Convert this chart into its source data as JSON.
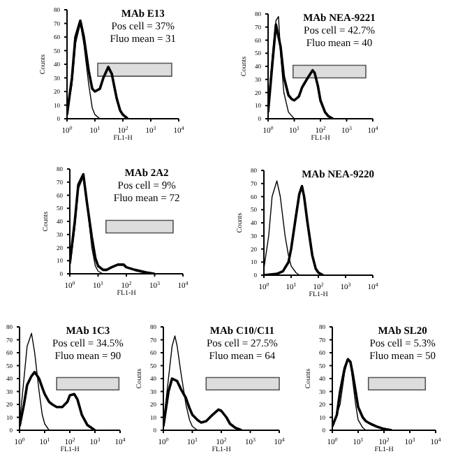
{
  "chart_data": [
    {
      "type": "line",
      "title": "MAb E13",
      "annotations": [
        "Pos cell = 37%",
        "Fluo mean = 31"
      ],
      "xlabel": "FL1-H",
      "ylabel": "Counts",
      "log": "x",
      "xlim": [
        1,
        10000
      ],
      "xticks": [
        {
          "value": 1,
          "label": "10$^{0}$"
        },
        {
          "value": 10,
          "label": "10$^{1}$"
        },
        {
          "value": 100,
          "label": "10$^{2}$"
        },
        {
          "value": 1000,
          "label": "10$^{3}$"
        },
        {
          "value": 10000,
          "label": "10$^{4}$"
        }
      ],
      "ylim": [
        0,
        80
      ],
      "yticks": [
        0,
        10,
        20,
        30,
        40,
        50,
        60,
        70,
        80
      ],
      "bands": [
        {
          "axis": "x",
          "from": 12.6,
          "to": 5600
        }
      ],
      "series": [
        {
          "color": "#000000",
          "x": [
            1,
            1.5,
            2,
            3,
            4,
            6,
            8,
            10,
            15
          ],
          "values": [
            5,
            25,
            55,
            70,
            55,
            25,
            8,
            3,
            0
          ]
        },
        {
          "color": "#000000",
          "x": [
            1,
            1.5,
            2,
            3,
            4,
            6,
            8,
            10,
            15,
            20,
            30,
            40,
            60,
            80,
            100,
            150
          ],
          "values": [
            3,
            30,
            60,
            72,
            60,
            35,
            22,
            20,
            22,
            30,
            38,
            33,
            15,
            6,
            3,
            0
          ]
        }
      ]
    },
    {
      "type": "line",
      "title": "MAb NEA-9221",
      "annotations": [
        "Pos cell = 42.7%",
        "Fluo mean = 40"
      ],
      "xlabel": "FL1-H",
      "ylabel": "Counts",
      "log": "x",
      "xlim": [
        1,
        10000
      ],
      "xticks": [
        {
          "value": 1,
          "label": "10$^{0}$"
        },
        {
          "value": 10,
          "label": "10$^{1}$"
        },
        {
          "value": 100,
          "label": "10$^{2}$"
        },
        {
          "value": 1000,
          "label": "10$^{3}$"
        },
        {
          "value": 10000,
          "label": "10$^{4}$"
        }
      ],
      "ylim": [
        0,
        80
      ],
      "yticks": [
        0,
        10,
        20,
        30,
        40,
        50,
        60,
        70,
        80
      ],
      "bands": [
        {
          "axis": "x",
          "from": 9,
          "to": 5400
        }
      ],
      "series": [
        {
          "color": "#000000",
          "x": [
            1,
            1.5,
            2,
            2.5,
            3,
            4,
            6,
            10
          ],
          "values": [
            10,
            50,
            75,
            78,
            50,
            20,
            5,
            0
          ]
        },
        {
          "color": "#000000",
          "x": [
            1,
            1.5,
            2,
            3,
            4,
            6,
            8,
            10,
            15,
            20,
            30,
            50,
            60,
            80,
            100,
            150,
            200,
            300
          ],
          "values": [
            5,
            45,
            72,
            55,
            32,
            18,
            15,
            14,
            17,
            24,
            30,
            37,
            35,
            25,
            14,
            5,
            2,
            0
          ]
        }
      ]
    },
    {
      "type": "line",
      "title": "MAb 2A2",
      "annotations": [
        "Pos cell = 9%",
        "Fluo mean = 72"
      ],
      "xlabel": "FL1-H",
      "ylabel": "Counts",
      "log": "x",
      "xlim": [
        1,
        10000
      ],
      "xticks": [
        {
          "value": 1,
          "label": "10$^{0}$"
        },
        {
          "value": 10,
          "label": "10$^{1}$"
        },
        {
          "value": 100,
          "label": "10$^{2}$"
        },
        {
          "value": 1000,
          "label": "10$^{3}$"
        },
        {
          "value": 10000,
          "label": "10$^{4}$"
        }
      ],
      "ylim": [
        0,
        80
      ],
      "yticks": [
        0,
        10,
        20,
        30,
        40,
        50,
        60,
        70,
        80
      ],
      "bands": [
        {
          "axis": "x",
          "from": 19,
          "to": 4500
        }
      ],
      "series": [
        {
          "color": "#000000",
          "x": [
            1,
            1.5,
            2,
            3,
            4,
            6,
            8,
            10,
            15
          ],
          "values": [
            5,
            35,
            65,
            74,
            55,
            20,
            6,
            2,
            0
          ]
        },
        {
          "color": "#000000",
          "x": [
            1,
            1.5,
            2,
            3,
            4,
            5,
            6,
            8,
            10,
            15,
            20,
            30,
            50,
            80,
            100,
            200,
            500,
            1000
          ],
          "values": [
            8,
            40,
            68,
            76,
            55,
            40,
            28,
            12,
            6,
            3,
            3,
            5,
            7,
            7,
            5,
            3,
            1,
            0
          ]
        }
      ]
    },
    {
      "type": "line",
      "title": "MAb NEA-9220",
      "xlabel": "FL1-H",
      "ylabel": "Counts",
      "log": "x",
      "xlim": [
        1,
        10000
      ],
      "xticks": [
        {
          "value": 1,
          "label": "10$^{0}$"
        },
        {
          "value": 10,
          "label": "10$^{1}$"
        },
        {
          "value": 100,
          "label": "10$^{2}$"
        },
        {
          "value": 1000,
          "label": "10$^{3}$"
        },
        {
          "value": 10000,
          "label": "10$^{4}$"
        }
      ],
      "ylim": [
        0,
        80
      ],
      "yticks": [
        0,
        10,
        20,
        30,
        40,
        50,
        60,
        70,
        80
      ],
      "series": [
        {
          "color": "#000000",
          "x": [
            1,
            1.5,
            2,
            3,
            4,
            6,
            8,
            10,
            15,
            20
          ],
          "values": [
            5,
            30,
            60,
            72,
            60,
            30,
            15,
            7,
            2,
            0
          ]
        },
        {
          "color": "#000000",
          "x": [
            1,
            3,
            5,
            8,
            10,
            15,
            20,
            25,
            30,
            40,
            60,
            80,
            100,
            150
          ],
          "values": [
            0,
            1,
            3,
            10,
            20,
            45,
            62,
            68,
            60,
            40,
            15,
            5,
            2,
            0
          ]
        }
      ]
    },
    {
      "type": "line",
      "title": "MAb 1C3",
      "annotations": [
        "Pos cell = 34.5%",
        "Fluo mean = 90"
      ],
      "xlabel": "FL1-H",
      "log": "x",
      "xlim": [
        1,
        10000
      ],
      "xticks": [
        {
          "value": 1,
          "label": "10$^{0}$"
        },
        {
          "value": 10,
          "label": "10$^{1}$"
        },
        {
          "value": 100,
          "label": "10$^{2}$"
        },
        {
          "value": 1000,
          "label": "10$^{3}$"
        },
        {
          "value": 10000,
          "label": "10$^{4}$"
        }
      ],
      "ylim": [
        0,
        80
      ],
      "yticks": [
        0,
        10,
        20,
        30,
        40,
        50,
        60,
        70,
        80
      ],
      "bands": [
        {
          "axis": "x",
          "from": 30,
          "to": 9000
        }
      ],
      "series": [
        {
          "color": "#000000",
          "x": [
            1,
            1.5,
            2,
            3,
            4,
            6,
            8,
            10,
            15
          ],
          "values": [
            5,
            40,
            65,
            75,
            60,
            30,
            12,
            5,
            0
          ]
        },
        {
          "color": "#000000",
          "x": [
            1,
            1.5,
            2,
            3,
            4,
            6,
            8,
            10,
            15,
            20,
            30,
            50,
            80,
            100,
            150,
            200,
            300,
            500,
            1000
          ],
          "values": [
            3,
            20,
            35,
            42,
            45,
            40,
            33,
            28,
            22,
            20,
            18,
            18,
            22,
            27,
            28,
            24,
            12,
            4,
            0
          ]
        }
      ]
    },
    {
      "type": "line",
      "title": "MAb C10/C11",
      "annotations": [
        "Pos cell = 27.5%",
        "Fluo mean = 64"
      ],
      "xlabel": "FL1-H",
      "ylabel": "Counts",
      "log": "x",
      "xlim": [
        1,
        10000
      ],
      "xticks": [
        {
          "value": 1,
          "label": "10$^{0}$"
        },
        {
          "value": 10,
          "label": "10$^{1}$"
        },
        {
          "value": 100,
          "label": "10$^{2}$"
        },
        {
          "value": 1000,
          "label": "10$^{3}$"
        },
        {
          "value": 10000,
          "label": "10$^{4}$"
        }
      ],
      "ylim": [
        0,
        80
      ],
      "yticks": [
        0,
        10,
        20,
        30,
        40,
        50,
        60,
        70,
        80
      ],
      "bands": [
        {
          "axis": "x",
          "from": 30,
          "to": 10000
        }
      ],
      "series": [
        {
          "color": "#000000",
          "x": [
            1,
            1.5,
            2,
            2.5,
            3,
            4,
            6,
            8,
            10,
            15
          ],
          "values": [
            5,
            40,
            65,
            73,
            65,
            45,
            20,
            8,
            3,
            0
          ]
        },
        {
          "color": "#000000",
          "x": [
            1,
            1.5,
            2,
            3,
            4,
            6,
            8,
            10,
            15,
            20,
            30,
            50,
            80,
            100,
            150,
            200,
            300,
            500
          ],
          "values": [
            3,
            30,
            40,
            38,
            32,
            25,
            17,
            12,
            8,
            6,
            7,
            12,
            16,
            15,
            10,
            5,
            2,
            0
          ]
        }
      ]
    },
    {
      "type": "line",
      "title": "MAb SL20",
      "annotations": [
        "Pos cell = 5.3%",
        "Fluo mean = 50"
      ],
      "xlabel": "FL1-H",
      "ylabel": "Counts",
      "log": "x",
      "xlim": [
        1,
        10000
      ],
      "xticks": [
        {
          "value": 1,
          "label": "10$^{0}$"
        },
        {
          "value": 10,
          "label": "10$^{1}$"
        },
        {
          "value": 100,
          "label": "10$^{2}$"
        },
        {
          "value": 1000,
          "label": "10$^{3}$"
        },
        {
          "value": 10000,
          "label": "10$^{4}$"
        }
      ],
      "ylim": [
        0,
        80
      ],
      "yticks": [
        0,
        10,
        20,
        30,
        40,
        50,
        60,
        70,
        80
      ],
      "bands": [
        {
          "axis": "x",
          "from": 25,
          "to": 4000
        }
      ],
      "series": [
        {
          "color": "#000000",
          "x": [
            1,
            2,
            3,
            4,
            5,
            6,
            8,
            10,
            15,
            20
          ],
          "values": [
            2,
            20,
            45,
            55,
            52,
            40,
            20,
            8,
            2,
            0
          ]
        },
        {
          "color": "#000000",
          "x": [
            1,
            1.5,
            2,
            3,
            4,
            5,
            6,
            8,
            10,
            15,
            20,
            30,
            50,
            100,
            200
          ],
          "values": [
            3,
            12,
            30,
            48,
            55,
            53,
            45,
            30,
            18,
            10,
            7,
            5,
            3,
            1,
            0
          ]
        }
      ]
    }
  ]
}
